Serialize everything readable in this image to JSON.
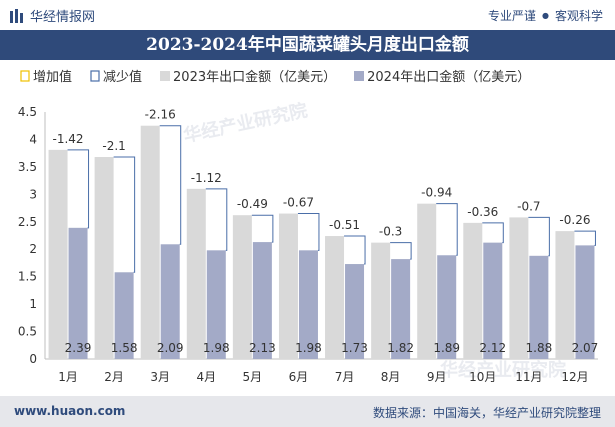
{
  "header": {
    "brand": "华经情报网",
    "link_professional": "专业严谨",
    "separator": "●",
    "link_objective": "客观科学"
  },
  "colors": {
    "title_bg": "#2f4a7a",
    "bar_2023": "#d9d9d9",
    "bar_2024": "#a3aac7",
    "increase": "#f0c000",
    "decrease": "#4a6ea8"
  },
  "chart_data": {
    "type": "bar",
    "title": "2023-2024年中国蔬菜罐头月度出口金额",
    "categories": [
      "1月",
      "2月",
      "3月",
      "4月",
      "5月",
      "6月",
      "7月",
      "8月",
      "9月",
      "10月",
      "11月",
      "12月"
    ],
    "series": [
      {
        "name": "2023年出口金额（亿美元）",
        "values": [
          3.81,
          3.68,
          4.25,
          3.1,
          2.62,
          2.65,
          2.24,
          2.12,
          2.83,
          2.48,
          2.58,
          2.33
        ]
      },
      {
        "name": "2024年出口金额（亿美元）",
        "values": [
          2.39,
          1.58,
          2.09,
          1.98,
          2.13,
          1.98,
          1.73,
          1.82,
          1.89,
          2.12,
          1.88,
          2.07
        ]
      }
    ],
    "change": [
      -1.42,
      -2.1,
      -2.16,
      -1.12,
      -0.49,
      -0.67,
      -0.51,
      -0.3,
      -0.94,
      -0.36,
      -0.7,
      -0.26
    ],
    "legend_increase": "增加值",
    "legend_decrease": "减少值",
    "ylim": [
      0,
      4.5
    ],
    "yticks": [
      "0",
      "0.5",
      "1",
      "1.5",
      "2",
      "2.5",
      "3",
      "3.5",
      "4",
      "4.5"
    ],
    "grid": false,
    "legend_position": "top-left"
  },
  "footer": {
    "website": "www.huaon.com",
    "source": "数据来源：中国海关，华经产业研究院整理"
  },
  "watermark": "华经产业研究院"
}
